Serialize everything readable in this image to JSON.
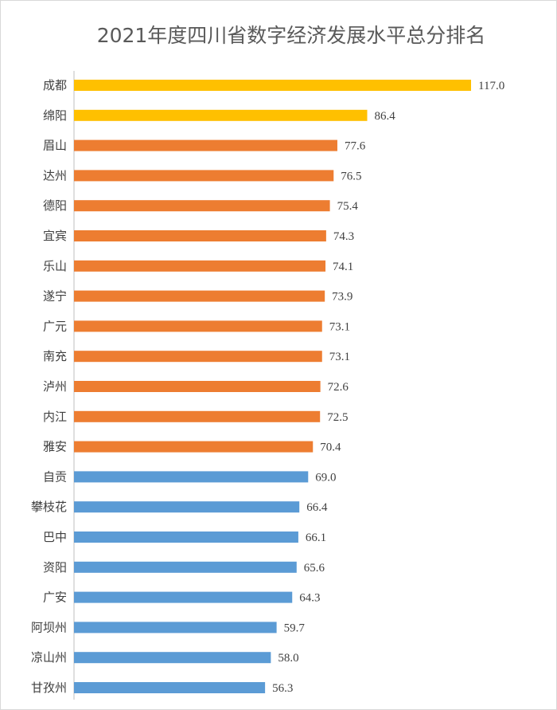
{
  "chart_data": {
    "type": "bar",
    "orientation": "horizontal",
    "title": "2021年度四川省数字经济发展水平总分排名",
    "xlabel": "",
    "ylabel": "",
    "xlim": [
      0,
      117
    ],
    "grid": false,
    "legend": "none",
    "categories": [
      "成都",
      "绵阳",
      "眉山",
      "达州",
      "德阳",
      "宜宾",
      "乐山",
      "遂宁",
      "广元",
      "南充",
      "泸州",
      "内江",
      "雅安",
      "自贡",
      "攀枝花",
      "巴中",
      "资阳",
      "广安",
      "阿坝州",
      "凉山州",
      "甘孜州"
    ],
    "values": [
      117.0,
      86.4,
      77.6,
      76.5,
      75.4,
      74.3,
      74.1,
      73.9,
      73.1,
      73.1,
      72.6,
      72.5,
      70.4,
      69.0,
      66.4,
      66.1,
      65.6,
      64.3,
      59.7,
      58.0,
      56.3
    ],
    "value_labels": [
      "117.0",
      "86.4",
      "77.6",
      "76.5",
      "75.4",
      "74.3",
      "74.1",
      "73.9",
      "73.1",
      "73.1",
      "72.6",
      "72.5",
      "70.4",
      "69.0",
      "66.4",
      "66.1",
      "65.6",
      "64.3",
      "59.7",
      "58.0",
      "56.3"
    ],
    "tiers": [
      "gold",
      "gold",
      "orange",
      "orange",
      "orange",
      "orange",
      "orange",
      "orange",
      "orange",
      "orange",
      "orange",
      "orange",
      "orange",
      "blue",
      "blue",
      "blue",
      "blue",
      "blue",
      "blue",
      "blue",
      "blue"
    ],
    "colors": {
      "gold": "#ffc000",
      "orange": "#ed7d31",
      "blue": "#5b9bd5",
      "axis": "#bfbfbf"
    }
  }
}
